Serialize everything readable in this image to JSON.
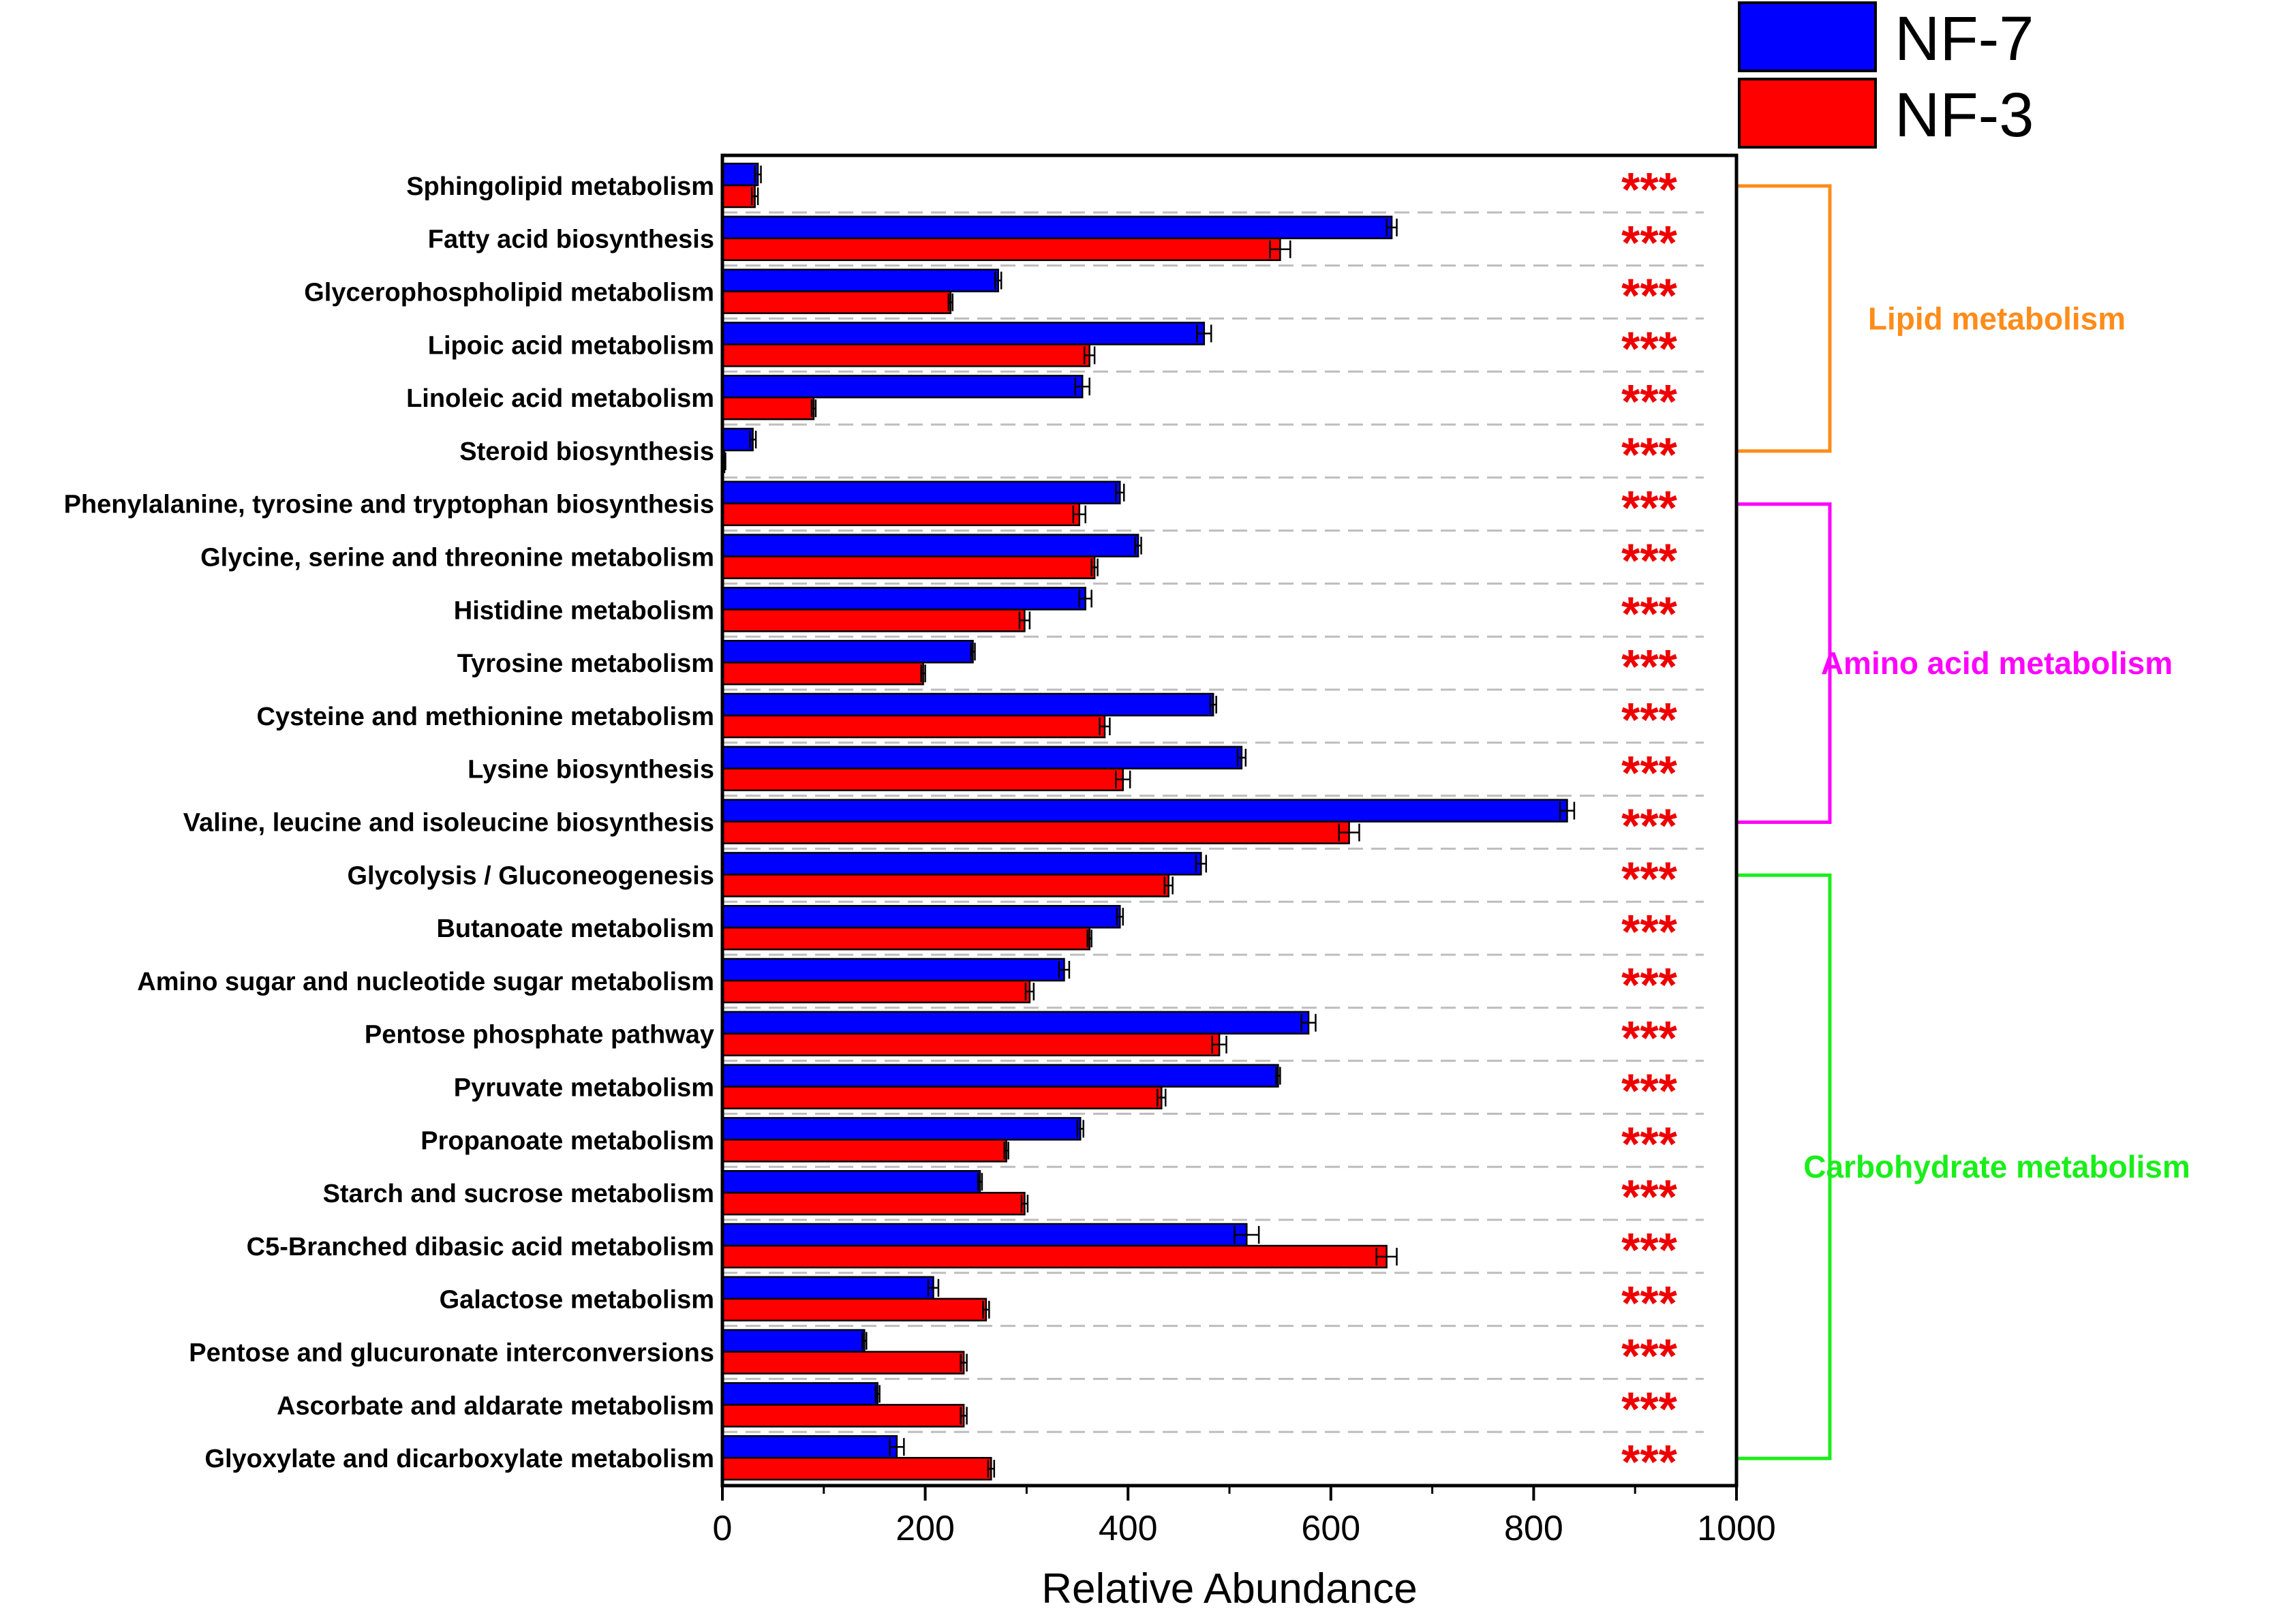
{
  "chart_data": {
    "type": "bar",
    "orientation": "horizontal",
    "title": "",
    "xlabel": "Relative Abundance",
    "ylabel": "",
    "xlim": [
      0,
      1000
    ],
    "xticks": [
      0,
      200,
      400,
      600,
      800,
      1000
    ],
    "grid": "dashed horizontal lines between categories",
    "legend_position": "top-right",
    "categories": [
      "Sphingolipid metabolism",
      "Fatty acid biosynthesis",
      "Glycerophospholipid metabolism",
      "Lipoic acid metabolism",
      "Linoleic acid metabolism",
      "Steroid biosynthesis",
      "Phenylalanine, tyrosine and tryptophan biosynthesis",
      "Glycine, serine and threonine metabolism",
      "Histidine metabolism",
      "Tyrosine metabolism",
      "Cysteine and methionine metabolism",
      "Lysine biosynthesis",
      "Valine, leucine and isoleucine biosynthesis",
      "Glycolysis / Gluconeogenesis",
      "Butanoate metabolism",
      "Amino sugar and nucleotide sugar metabolism",
      "Pentose phosphate pathway",
      "Pyruvate metabolism",
      "Propanoate metabolism",
      "Starch and sucrose metabolism",
      "C5-Branched dibasic acid metabolism",
      "Galactose metabolism",
      "Pentose and glucuronate interconversions",
      "Ascorbate and aldarate metabolism",
      "Glyoxylate and dicarboxylate metabolism"
    ],
    "series": [
      {
        "name": "NF-7",
        "color": "#0000ff",
        "values": [
          35,
          660,
          272,
          475,
          355,
          30,
          392,
          410,
          358,
          247,
          484,
          512,
          833,
          472,
          392,
          337,
          578,
          548,
          353,
          254,
          517,
          208,
          140,
          153,
          172
        ],
        "errors": [
          3,
          5,
          3,
          7,
          7,
          3,
          4,
          3,
          6,
          2,
          3,
          4,
          7,
          5,
          3,
          5,
          7,
          2,
          3,
          2,
          12,
          5,
          2,
          2,
          7
        ]
      },
      {
        "name": "NF-3",
        "color": "#ff0000",
        "values": [
          32,
          550,
          225,
          362,
          90,
          2,
          352,
          367,
          298,
          198,
          377,
          395,
          618,
          440,
          362,
          303,
          490,
          433,
          280,
          298,
          655,
          260,
          238,
          238,
          265
        ],
        "errors": [
          3,
          10,
          2,
          5,
          2,
          1,
          6,
          3,
          5,
          2,
          5,
          7,
          10,
          4,
          2,
          4,
          7,
          4,
          2,
          3,
          10,
          3,
          3,
          3,
          3
        ]
      }
    ],
    "significance_label": "***",
    "significance": [
      "***",
      "***",
      "***",
      "***",
      "***",
      "***",
      "***",
      "***",
      "***",
      "***",
      "***",
      "***",
      "***",
      "***",
      "***",
      "***",
      "***",
      "***",
      "***",
      "***",
      "***",
      "***",
      "***",
      "***",
      "***"
    ],
    "groups": [
      {
        "name": "Lipid metabolism",
        "color": "#ff8c1a",
        "start": 0,
        "end": 5
      },
      {
        "name": "Amino acid metabolism",
        "color": "#ff00ff",
        "start": 6,
        "end": 12
      },
      {
        "name": "Carbohydrate metabolism",
        "color": "#1aee1a",
        "start": 13,
        "end": 24
      }
    ]
  }
}
